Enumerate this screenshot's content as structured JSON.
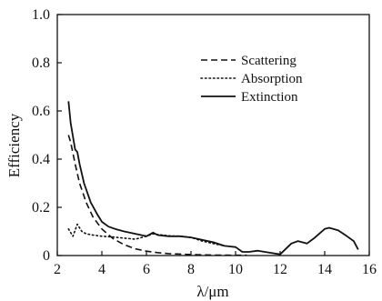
{
  "chart_data": {
    "type": "line",
    "title": "",
    "xlabel": "λ/μm",
    "ylabel": "Efficiency",
    "xlim": [
      2,
      16
    ],
    "ylim": [
      0,
      1.0
    ],
    "xticks": [
      2,
      4,
      6,
      8,
      10,
      12,
      14,
      16
    ],
    "yticks": [
      0,
      0.2,
      0.4,
      0.6,
      0.8,
      1.0
    ],
    "xtick_labels": [
      "2",
      "4",
      "6",
      "8",
      "10",
      "12",
      "14",
      "16"
    ],
    "ytick_labels": [
      "0",
      "0.2",
      "0.4",
      "0.6",
      "0.8",
      "1.0"
    ],
    "grid": false,
    "legend_position": "top-right",
    "series": [
      {
        "name": "Scattering",
        "style": "dashed",
        "color": "#111111",
        "x": [
          2.5,
          2.6,
          2.8,
          3.0,
          3.3,
          3.6,
          4.0,
          4.5,
          5.0,
          5.5,
          6.0,
          6.5,
          7.0,
          7.5,
          8.0,
          8.5,
          9.0,
          9.5,
          10.0,
          10.5
        ],
        "y": [
          0.5,
          0.47,
          0.38,
          0.3,
          0.22,
          0.16,
          0.11,
          0.07,
          0.045,
          0.028,
          0.018,
          0.012,
          0.008,
          0.006,
          0.004,
          0.003,
          0.002,
          0.002,
          0.001,
          0.001
        ]
      },
      {
        "name": "Absorption",
        "style": "dotted",
        "color": "#111111",
        "x": [
          2.5,
          2.7,
          2.9,
          3.1,
          3.3,
          3.6,
          4.0,
          4.5,
          5.0,
          5.5,
          6.0,
          6.3,
          6.5,
          7.0,
          7.5,
          8.0,
          8.5,
          9.0,
          9.5
        ],
        "y": [
          0.11,
          0.08,
          0.13,
          0.1,
          0.09,
          0.085,
          0.08,
          0.077,
          0.072,
          0.068,
          0.08,
          0.09,
          0.087,
          0.082,
          0.08,
          0.075,
          0.06,
          0.05,
          0.04
        ]
      },
      {
        "name": "Extinction",
        "style": "solid",
        "color": "#111111",
        "x": [
          2.5,
          2.6,
          2.8,
          2.9,
          3.0,
          3.2,
          3.5,
          3.8,
          4.0,
          4.3,
          4.6,
          5.0,
          5.5,
          6.0,
          6.3,
          6.5,
          7.0,
          7.5,
          8.0,
          8.5,
          9.0,
          9.5,
          10.0,
          10.3,
          10.6,
          11.0,
          11.5,
          12.0,
          12.5,
          12.8,
          13.2,
          13.5,
          14.0,
          14.2,
          14.6,
          15.0,
          15.3,
          15.5
        ],
        "y": [
          0.64,
          0.55,
          0.44,
          0.43,
          0.38,
          0.3,
          0.22,
          0.17,
          0.14,
          0.12,
          0.11,
          0.1,
          0.09,
          0.08,
          0.095,
          0.085,
          0.08,
          0.08,
          0.075,
          0.065,
          0.055,
          0.04,
          0.035,
          0.015,
          0.015,
          0.02,
          0.012,
          0.005,
          0.05,
          0.06,
          0.05,
          0.07,
          0.11,
          0.115,
          0.105,
          0.08,
          0.06,
          0.025
        ]
      }
    ]
  }
}
